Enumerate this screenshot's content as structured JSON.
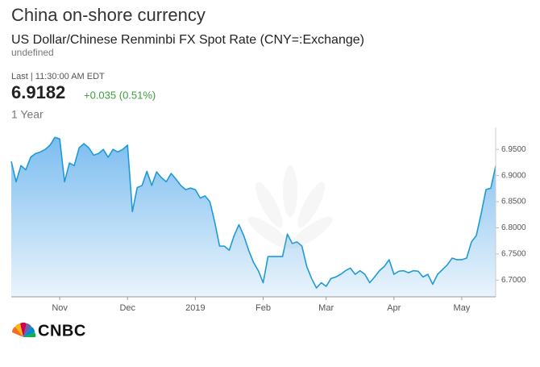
{
  "chart_data": {
    "type": "area",
    "title": "China on-shore currency",
    "subtitle": "US Dollar/Chinese Renminbi FX Spot Rate (CNY=:Exchange)",
    "note": "undefined",
    "last_time": "Last | 11:30:00 AM EDT",
    "last_value": "6.9182",
    "change": "+0.035 (0.51%)",
    "period": "1 Year",
    "logo": "CNBC",
    "color": "#1e9ad6",
    "grid": false,
    "ylim": [
      6.668,
      6.992
    ],
    "yticks": [
      {
        "value": 6.95,
        "label": "6.9500"
      },
      {
        "value": 6.9,
        "label": "6.9000"
      },
      {
        "value": 6.85,
        "label": "6.8500"
      },
      {
        "value": 6.8,
        "label": "6.8000"
      },
      {
        "value": 6.75,
        "label": "6.7500"
      },
      {
        "value": 6.7,
        "label": "6.7000"
      }
    ],
    "categories": [
      null,
      null,
      null,
      null,
      null,
      null,
      null,
      null,
      null,
      null,
      "Nov",
      null,
      null,
      null,
      null,
      null,
      null,
      null,
      null,
      null,
      null,
      null,
      null,
      null,
      "Dec",
      null,
      null,
      null,
      null,
      null,
      null,
      null,
      null,
      null,
      null,
      null,
      null,
      null,
      "2019",
      null,
      null,
      null,
      null,
      null,
      null,
      null,
      null,
      null,
      null,
      null,
      null,
      null,
      "Feb",
      null,
      null,
      null,
      null,
      null,
      null,
      null,
      null,
      null,
      null,
      null,
      null,
      "Mar",
      null,
      null,
      null,
      null,
      null,
      null,
      null,
      null,
      null,
      null,
      null,
      null,
      null,
      "Apr",
      null,
      null,
      null,
      null,
      null,
      null,
      null,
      null,
      null,
      null,
      null,
      null,
      null,
      "May",
      null,
      null,
      null,
      null,
      null,
      null,
      null
    ],
    "values": [
      6.927,
      6.888,
      6.919,
      6.911,
      6.935,
      6.942,
      6.945,
      6.95,
      6.958,
      6.973,
      6.97,
      6.888,
      6.924,
      6.919,
      6.953,
      6.961,
      6.953,
      6.939,
      6.942,
      6.95,
      6.935,
      6.95,
      6.945,
      6.95,
      6.958,
      6.831,
      6.877,
      6.881,
      6.908,
      6.881,
      6.907,
      6.896,
      6.888,
      6.904,
      6.893,
      6.881,
      6.873,
      6.876,
      6.873,
      6.857,
      6.861,
      6.85,
      6.811,
      6.765,
      6.765,
      6.757,
      6.785,
      6.806,
      6.785,
      6.757,
      6.734,
      6.718,
      6.695,
      6.745,
      6.745,
      6.745,
      6.745,
      6.788,
      6.77,
      6.773,
      6.765,
      6.726,
      6.703,
      6.685,
      6.695,
      6.688,
      6.703,
      6.706,
      6.711,
      6.718,
      6.723,
      6.711,
      6.718,
      6.711,
      6.695,
      6.706,
      6.718,
      6.726,
      6.739,
      6.711,
      6.717,
      6.718,
      6.714,
      6.718,
      6.717,
      6.706,
      6.711,
      6.692,
      6.711,
      6.72,
      6.729,
      6.742,
      6.739,
      6.739,
      6.742,
      6.773,
      6.785,
      6.827,
      6.873,
      6.876,
      6.918
    ]
  }
}
